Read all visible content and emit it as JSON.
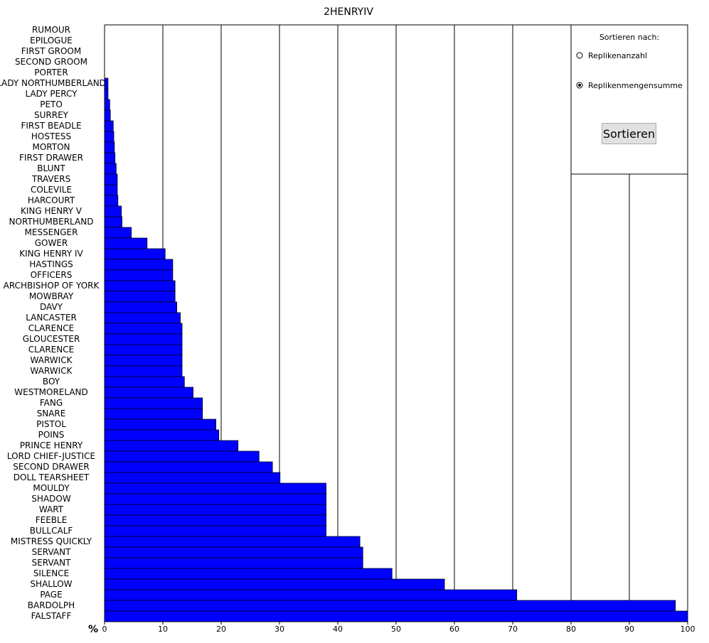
{
  "chart_data": {
    "type": "hbar",
    "title": "2HENRYIV",
    "x_label": "%",
    "color": "#0000ff",
    "categories": [
      "RUMOUR",
      "EPILOGUE",
      "FIRST GROOM",
      "SECOND GROOM",
      "PORTER",
      "LADY NORTHUMBERLAND",
      "LADY PERCY",
      "PETO",
      "SURREY",
      "FIRST BEADLE",
      "HOSTESS",
      "MORTON",
      "FIRST DRAWER",
      "BLUNT",
      "TRAVERS",
      "COLEVILE",
      "HARCOURT",
      "KING HENRY V",
      "NORTHUMBERLAND",
      "MESSENGER",
      "GOWER",
      "KING HENRY IV",
      "HASTINGS",
      "OFFICERS",
      "ARCHBISHOP OF YORK",
      "MOWBRAY",
      "DAVY",
      "LANCASTER",
      "CLARENCE",
      "GLOUCESTER",
      "CLARENCE",
      "WARWICK",
      "WARWICK",
      "BOY",
      "WESTMORELAND",
      "FANG",
      "SNARE",
      "PISTOL",
      "POINS",
      "PRINCE HENRY",
      "LORD CHIEF-JUSTICE",
      "SECOND DRAWER",
      "DOLL TEARSHEET",
      "MOULDY",
      "SHADOW",
      "WART",
      "FEEBLE",
      "BULLCALF",
      "MISTRESS QUICKLY",
      "SERVANT",
      "SERVANT",
      "SILENCE",
      "SHALLOW",
      "PAGE",
      "BARDOLPH",
      "FALSTAFF"
    ],
    "values": [
      0,
      0,
      0,
      0,
      0,
      0.6,
      0.6,
      0.9,
      1.0,
      1.5,
      1.6,
      1.7,
      1.8,
      2.0,
      2.2,
      2.2,
      2.3,
      2.9,
      3.0,
      4.6,
      7.3,
      10.4,
      11.7,
      11.7,
      12.1,
      12.1,
      12.4,
      13.0,
      13.3,
      13.3,
      13.3,
      13.3,
      13.3,
      13.7,
      15.2,
      16.8,
      16.8,
      19.1,
      19.6,
      22.9,
      26.5,
      28.8,
      30.1,
      38.0,
      38.0,
      38.0,
      38.0,
      38.0,
      43.8,
      44.3,
      44.3,
      49.3,
      58.3,
      70.7,
      97.9,
      100
    ],
    "xlim": [
      0,
      100
    ],
    "xticks": [
      0,
      10,
      20,
      30,
      40,
      50,
      60,
      70,
      80,
      90,
      100
    ],
    "grid": true
  },
  "panel": {
    "heading": "Sortieren nach:",
    "options": [
      "Replikenanzahl",
      "Replikenmengensumme"
    ],
    "selected": 1,
    "button": "Sortieren"
  }
}
